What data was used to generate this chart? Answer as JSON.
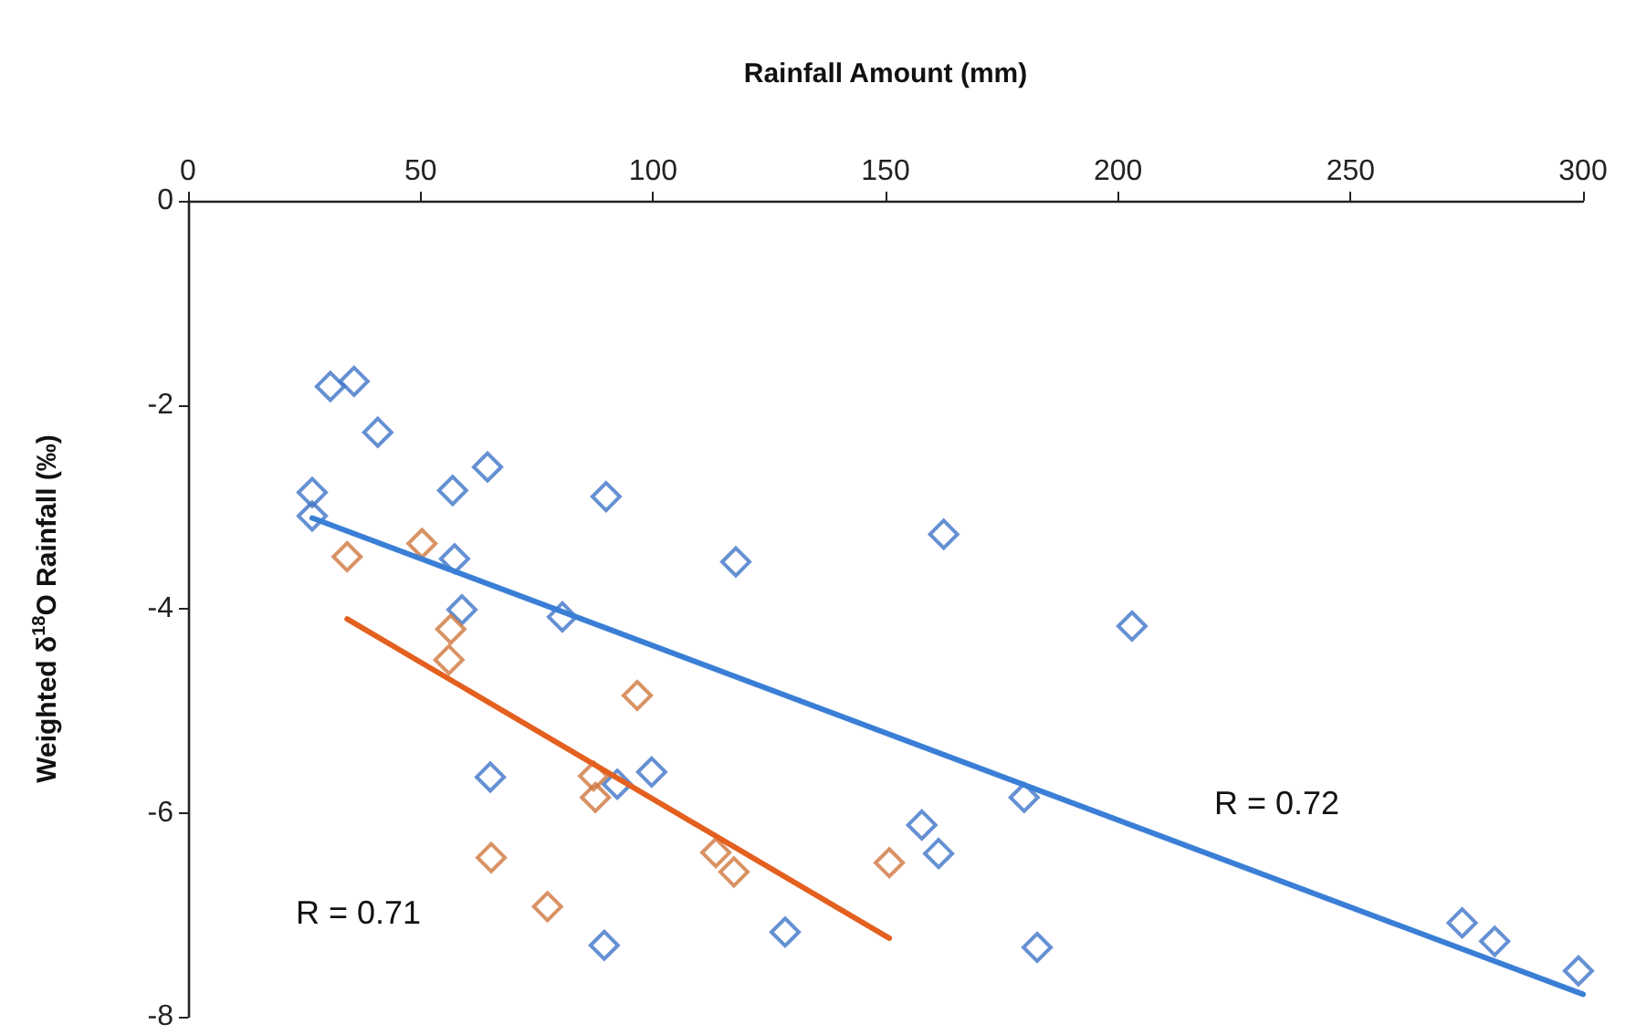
{
  "chart_data": {
    "type": "scatter",
    "xlabel": "Rainfall Amount (mm)",
    "ylabel": "Weighted δ$^{18}$O Rainfall (‰)",
    "xlim": [
      0,
      300
    ],
    "xticks": [
      0,
      50,
      100,
      150,
      200,
      250,
      300
    ],
    "ylim": [
      -8,
      0
    ],
    "yticks": [
      -8,
      -6,
      -4,
      -2,
      0
    ],
    "grid": false,
    "marker": "diamond",
    "series": [
      {
        "color": "#3f74c8",
        "x": [
          30.6,
          35.7,
          40.8,
          26.7,
          26.7,
          64.4,
          56.9,
          89.9,
          57.3,
          58.9,
          80.5,
          117.8,
          162.5,
          203,
          65,
          92.3,
          99.7,
          89.5,
          128.4,
          157.8,
          161.4,
          179.8,
          182.6,
          274,
          281,
          299
        ],
        "values": [
          -1.82,
          -1.77,
          -2.27,
          -2.86,
          -3.09,
          -2.61,
          -2.84,
          -2.9,
          -3.51,
          -4.01,
          -4.08,
          -3.54,
          -3.27,
          -4.17,
          -5.65,
          -5.72,
          -5.6,
          -7.3,
          -7.17,
          -6.12,
          -6.4,
          -5.85,
          -7.32,
          -7.08,
          -7.26,
          -7.55
        ]
      },
      {
        "color": "#d0773e",
        "x": [
          34.2,
          50.3,
          56.5,
          56.1,
          96.6,
          87.2,
          87.6,
          113.5,
          117.4,
          77.3,
          150.8,
          65.2
        ],
        "values": [
          -3.49,
          -3.36,
          -4.2,
          -4.5,
          -4.85,
          -5.64,
          -5.85,
          -6.39,
          -6.58,
          -6.92,
          -6.49,
          -6.44
        ]
      },
      {
        "type": "line",
        "marker": "none",
        "color": "#3a7fd5",
        "x": [
          26.7,
          300
        ],
        "values": [
          -3.11,
          -7.78
        ]
      },
      {
        "type": "line",
        "marker": "none",
        "color": "#e4601f",
        "x": [
          34.2,
          150.8
        ],
        "values": [
          -4.1,
          -7.23
        ]
      }
    ],
    "annotations": [
      "R = 0.72",
      "R = 0.71"
    ]
  }
}
